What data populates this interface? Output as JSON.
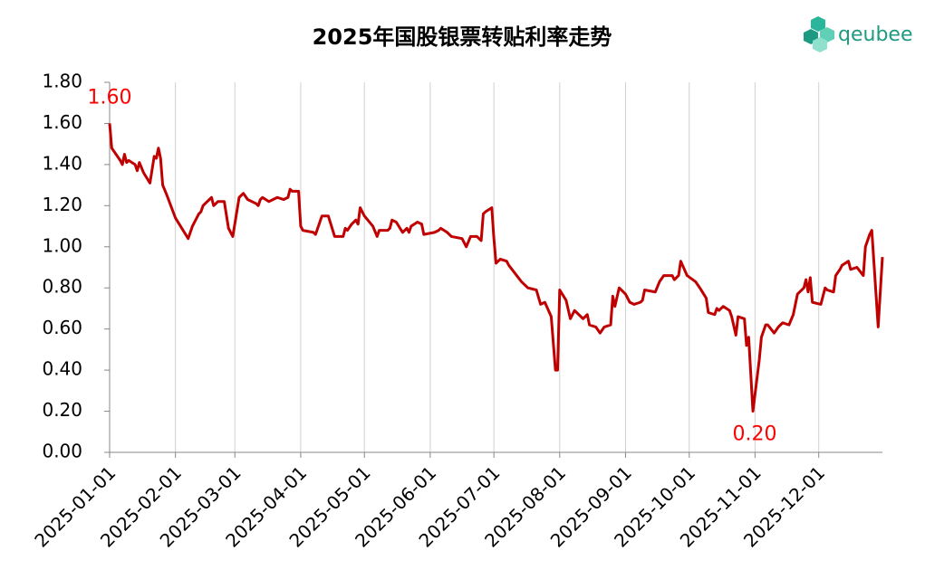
{
  "logo": "qeubee",
  "chart_data": {
    "type": "line",
    "title": "2025年国股银票转贴利率走势",
    "x": [
      "2025-01-01",
      "2025-01-02",
      "2025-01-06",
      "2025-01-07",
      "2025-01-08",
      "2025-01-09",
      "2025-01-10",
      "2025-01-13",
      "2025-01-14",
      "2025-01-15",
      "2025-01-17",
      "2025-01-20",
      "2025-01-22",
      "2025-01-23",
      "2025-01-24",
      "2025-01-25",
      "2025-01-26",
      "2025-01-28",
      "2025-02-01",
      "2025-02-07",
      "2025-02-09",
      "2025-02-12",
      "2025-02-13",
      "2025-02-14",
      "2025-02-18",
      "2025-02-19",
      "2025-02-21",
      "2025-02-24",
      "2025-02-26",
      "2025-02-28",
      "2025-03-03",
      "2025-03-05",
      "2025-03-07",
      "2025-03-11",
      "2025-03-12",
      "2025-03-13",
      "2025-03-14",
      "2025-03-17",
      "2025-03-19",
      "2025-03-21",
      "2025-03-24",
      "2025-03-26",
      "2025-03-27",
      "2025-03-28",
      "2025-03-31",
      "2025-04-01",
      "2025-04-02",
      "2025-04-07",
      "2025-04-08",
      "2025-04-10",
      "2025-04-11",
      "2025-04-14",
      "2025-04-17",
      "2025-04-21",
      "2025-04-22",
      "2025-04-23",
      "2025-04-25",
      "2025-04-27",
      "2025-04-28",
      "2025-04-29",
      "2025-05-01",
      "2025-05-05",
      "2025-05-07",
      "2025-05-08",
      "2025-05-12",
      "2025-05-13",
      "2025-05-14",
      "2025-05-16",
      "2025-05-19",
      "2025-05-21",
      "2025-05-22",
      "2025-05-23",
      "2025-05-26",
      "2025-05-28",
      "2025-05-29",
      "2025-06-03",
      "2025-06-05",
      "2025-06-06",
      "2025-06-09",
      "2025-06-11",
      "2025-06-16",
      "2025-06-18",
      "2025-06-20",
      "2025-06-23",
      "2025-06-25",
      "2025-06-26",
      "2025-06-27",
      "2025-06-30",
      "2025-07-01",
      "2025-07-02",
      "2025-07-04",
      "2025-07-07",
      "2025-07-08",
      "2025-07-11",
      "2025-07-14",
      "2025-07-17",
      "2025-07-21",
      "2025-07-23",
      "2025-07-25",
      "2025-07-28",
      "2025-07-30",
      "2025-07-31",
      "2025-08-01",
      "2025-08-04",
      "2025-08-06",
      "2025-08-08",
      "2025-08-12",
      "2025-08-14",
      "2025-08-15",
      "2025-08-18",
      "2025-08-20",
      "2025-08-22",
      "2025-08-25",
      "2025-08-26",
      "2025-08-27",
      "2025-08-29",
      "2025-09-01",
      "2025-09-03",
      "2025-09-05",
      "2025-09-08",
      "2025-09-09",
      "2025-09-10",
      "2025-09-15",
      "2025-09-17",
      "2025-09-19",
      "2025-09-23",
      "2025-09-24",
      "2025-09-26",
      "2025-09-27",
      "2025-09-30",
      "2025-10-04",
      "2025-10-06",
      "2025-10-09",
      "2025-10-10",
      "2025-10-13",
      "2025-10-14",
      "2025-10-15",
      "2025-10-17",
      "2025-10-20",
      "2025-10-21",
      "2025-10-23",
      "2025-10-24",
      "2025-10-27",
      "2025-10-28",
      "2025-10-29",
      "2025-10-31",
      "2025-11-03",
      "2025-11-04",
      "2025-11-06",
      "2025-11-07",
      "2025-11-10",
      "2025-11-12",
      "2025-11-14",
      "2025-11-17",
      "2025-11-19",
      "2025-11-21",
      "2025-11-24",
      "2025-11-25",
      "2025-11-26",
      "2025-11-27",
      "2025-11-28",
      "2025-12-02",
      "2025-12-04",
      "2025-12-05",
      "2025-12-08",
      "2025-12-09",
      "2025-12-11",
      "2025-12-12",
      "2025-12-15",
      "2025-12-16",
      "2025-12-19",
      "2025-12-22",
      "2025-12-23",
      "2025-12-25",
      "2025-12-26",
      "2025-12-29",
      "2025-12-31"
    ],
    "series": [
      {
        "color": "#c00000",
        "values": [
          1.6,
          1.48,
          1.42,
          1.4,
          1.45,
          1.41,
          1.42,
          1.4,
          1.37,
          1.41,
          1.36,
          1.31,
          1.44,
          1.43,
          1.48,
          1.43,
          1.3,
          1.25,
          1.14,
          1.04,
          1.1,
          1.16,
          1.17,
          1.2,
          1.24,
          1.2,
          1.22,
          1.22,
          1.09,
          1.05,
          1.24,
          1.26,
          1.23,
          1.21,
          1.2,
          1.23,
          1.24,
          1.22,
          1.23,
          1.24,
          1.23,
          1.24,
          1.28,
          1.27,
          1.27,
          1.1,
          1.08,
          1.07,
          1.06,
          1.12,
          1.15,
          1.15,
          1.05,
          1.05,
          1.09,
          1.08,
          1.11,
          1.13,
          1.11,
          1.19,
          1.15,
          1.1,
          1.05,
          1.08,
          1.08,
          1.09,
          1.13,
          1.12,
          1.07,
          1.09,
          1.07,
          1.1,
          1.12,
          1.11,
          1.06,
          1.07,
          1.08,
          1.09,
          1.07,
          1.05,
          1.04,
          1.0,
          1.05,
          1.05,
          1.03,
          1.16,
          1.17,
          1.19,
          1.04,
          0.92,
          0.94,
          0.93,
          0.91,
          0.87,
          0.83,
          0.8,
          0.79,
          0.72,
          0.73,
          0.66,
          0.4,
          0.4,
          0.79,
          0.74,
          0.65,
          0.69,
          0.65,
          0.67,
          0.62,
          0.61,
          0.58,
          0.61,
          0.62,
          0.76,
          0.71,
          0.8,
          0.77,
          0.73,
          0.72,
          0.73,
          0.74,
          0.79,
          0.78,
          0.83,
          0.86,
          0.86,
          0.84,
          0.86,
          0.93,
          0.86,
          0.83,
          0.8,
          0.75,
          0.68,
          0.67,
          0.7,
          0.69,
          0.71,
          0.69,
          0.66,
          0.57,
          0.66,
          0.65,
          0.52,
          0.56,
          0.2,
          0.45,
          0.56,
          0.62,
          0.62,
          0.58,
          0.61,
          0.63,
          0.62,
          0.67,
          0.77,
          0.8,
          0.84,
          0.78,
          0.85,
          0.73,
          0.72,
          0.8,
          0.79,
          0.78,
          0.86,
          0.89,
          0.91,
          0.93,
          0.89,
          0.9,
          0.86,
          1.0,
          1.06,
          1.08,
          0.61,
          0.95
        ]
      }
    ],
    "xlim": [
      "2025-01-01",
      "2025-12-31"
    ],
    "xticks": [
      "2025-01-01",
      "2025-02-01",
      "2025-03-01",
      "2025-04-01",
      "2025-05-01",
      "2025-06-01",
      "2025-07-01",
      "2025-08-01",
      "2025-09-01",
      "2025-10-01",
      "2025-11-01",
      "2025-12-01"
    ],
    "ylim": [
      0,
      1.8
    ],
    "yticks": [
      {
        "value": 0,
        "label": "0.00"
      },
      {
        "value": 0.2,
        "label": "0.20"
      },
      {
        "value": 0.4,
        "label": "0.40"
      },
      {
        "value": 0.6,
        "label": "0.60"
      },
      {
        "value": 0.8,
        "label": "0.80"
      },
      {
        "value": 1,
        "label": "1.00"
      },
      {
        "value": 1.2,
        "label": "1.20"
      },
      {
        "value": 1.4,
        "label": "1.40"
      },
      {
        "value": 1.6,
        "label": "1.60"
      },
      {
        "value": 1.8,
        "label": "1.80"
      }
    ],
    "grid": "x",
    "annotations": [
      {
        "text": "1.60",
        "x": "2025-01-01",
        "y": 1.6
      },
      {
        "text": "0.20",
        "x": "2025-10-31",
        "y": 0.2
      }
    ]
  }
}
